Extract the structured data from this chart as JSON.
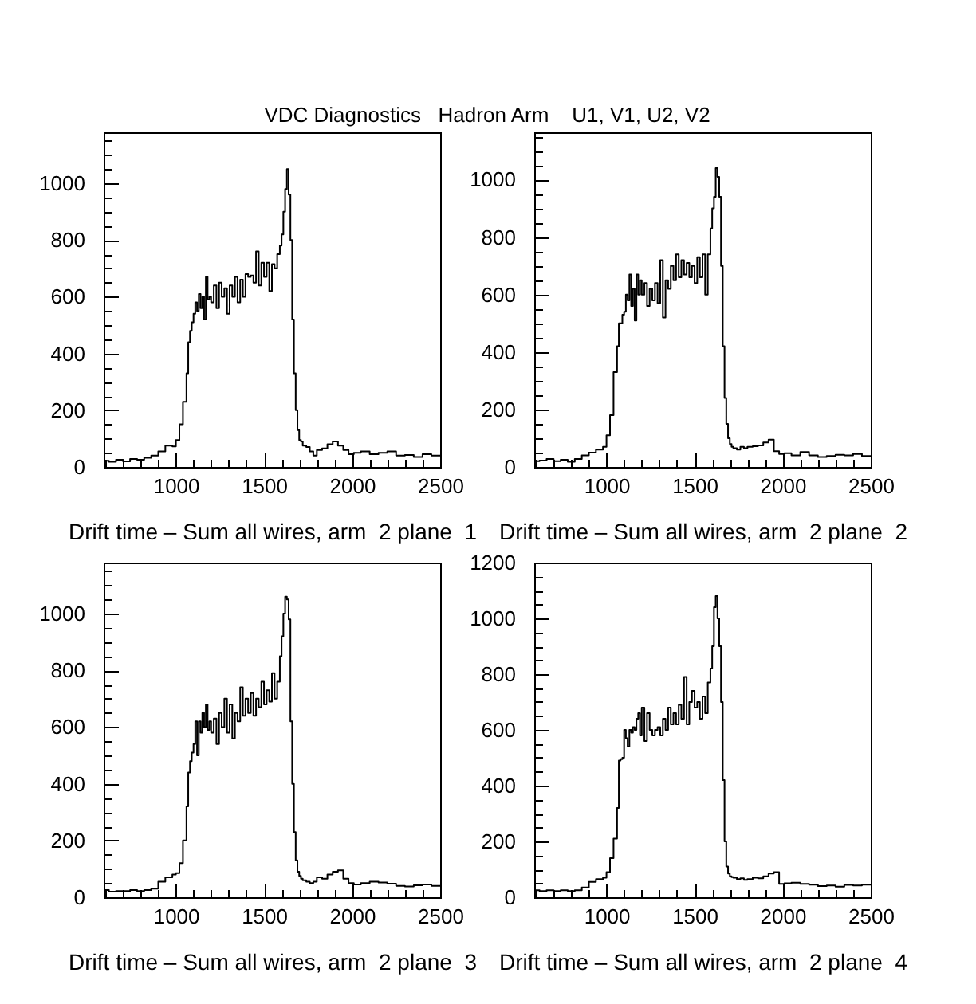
{
  "chart_data": [
    {
      "type": "histogram",
      "title": "VDC Diagnostics   Hadron Arm    U1, V1, U2, V2",
      "xlabel": "Drift time – Sum all wires, arm  2 plane  1",
      "color": "#000000",
      "bins": [
        590,
        620,
        660,
        700,
        740,
        780,
        820,
        860,
        900,
        940,
        980,
        1000,
        1020,
        1040,
        1060,
        1070,
        1080,
        1090,
        1100,
        1110,
        1120,
        1130,
        1140,
        1150,
        1160,
        1170,
        1180,
        1190,
        1200,
        1215,
        1230,
        1245,
        1260,
        1275,
        1290,
        1305,
        1320,
        1335,
        1350,
        1365,
        1380,
        1395,
        1410,
        1425,
        1440,
        1455,
        1470,
        1485,
        1500,
        1515,
        1530,
        1545,
        1560,
        1575,
        1590,
        1600,
        1610,
        1620,
        1630,
        1640,
        1650,
        1660,
        1670,
        1680,
        1690,
        1700,
        1710,
        1720,
        1740,
        1760,
        1780,
        1800,
        1830,
        1860,
        1890,
        1920,
        1950,
        1980,
        2010,
        2050,
        2100,
        2150,
        2200,
        2250,
        2300,
        2350,
        2400,
        2450,
        2500
      ],
      "values": [
        22,
        18,
        25,
        20,
        28,
        25,
        32,
        40,
        55,
        75,
        72,
        95,
        150,
        230,
        330,
        440,
        480,
        510,
        540,
        580,
        550,
        610,
        560,
        600,
        520,
        670,
        590,
        600,
        580,
        640,
        560,
        650,
        600,
        630,
        540,
        640,
        600,
        670,
        580,
        660,
        600,
        680,
        670,
        675,
        650,
        760,
        640,
        720,
        670,
        720,
        620,
        715,
        700,
        750,
        780,
        820,
        900,
        980,
        1050,
        960,
        800,
        520,
        330,
        200,
        130,
        95,
        90,
        75,
        70,
        55,
        40,
        60,
        65,
        80,
        90,
        75,
        60,
        45,
        50,
        55,
        45,
        50,
        55,
        40,
        42,
        35,
        45,
        40
      ],
      "xlim": [
        590,
        2500
      ],
      "xticks": [
        {
          "value": 600,
          "label": null
        },
        {
          "value": 700,
          "label": null
        },
        {
          "value": 800,
          "label": null
        },
        {
          "value": 900,
          "label": null
        },
        1000,
        {
          "value": 1100,
          "label": null
        },
        {
          "value": 1200,
          "label": null
        },
        {
          "value": 1300,
          "label": null
        },
        {
          "value": 1400,
          "label": null
        },
        1500,
        {
          "value": 1600,
          "label": null
        },
        {
          "value": 1700,
          "label": null
        },
        {
          "value": 1800,
          "label": null
        },
        {
          "value": 1900,
          "label": null
        },
        2000,
        {
          "value": 2100,
          "label": null
        },
        {
          "value": 2200,
          "label": null
        },
        {
          "value": 2300,
          "label": null
        },
        {
          "value": 2400,
          "label": null
        },
        2500
      ],
      "ylim": [
        0,
        1180
      ],
      "yticks": [
        0,
        {
          "value": 50,
          "label": null
        },
        {
          "value": 100,
          "label": null
        },
        {
          "value": 150,
          "label": null
        },
        200,
        {
          "value": 250,
          "label": null
        },
        {
          "value": 300,
          "label": null
        },
        {
          "value": 350,
          "label": null
        },
        400,
        {
          "value": 450,
          "label": null
        },
        {
          "value": 500,
          "label": null
        },
        {
          "value": 550,
          "label": null
        },
        600,
        {
          "value": 650,
          "label": null
        },
        {
          "value": 700,
          "label": null
        },
        {
          "value": 750,
          "label": null
        },
        800,
        {
          "value": 850,
          "label": null
        },
        {
          "value": 900,
          "label": null
        },
        {
          "value": 950,
          "label": null
        },
        1000,
        {
          "value": 1050,
          "label": null
        },
        {
          "value": 1100,
          "label": null
        },
        {
          "value": 1150,
          "label": null
        }
      ]
    },
    {
      "type": "histogram",
      "xlabel": "Drift time – Sum all wires, arm  2 plane  2",
      "color": "#000000",
      "bins": [
        590,
        620,
        660,
        700,
        740,
        780,
        820,
        860,
        900,
        940,
        980,
        1000,
        1020,
        1040,
        1060,
        1070,
        1080,
        1090,
        1100,
        1110,
        1120,
        1130,
        1140,
        1150,
        1160,
        1170,
        1180,
        1190,
        1200,
        1215,
        1230,
        1245,
        1260,
        1275,
        1290,
        1305,
        1320,
        1335,
        1350,
        1365,
        1380,
        1395,
        1410,
        1425,
        1440,
        1455,
        1470,
        1485,
        1500,
        1515,
        1530,
        1545,
        1560,
        1575,
        1590,
        1600,
        1610,
        1620,
        1630,
        1640,
        1650,
        1660,
        1670,
        1680,
        1690,
        1700,
        1710,
        1720,
        1740,
        1760,
        1780,
        1800,
        1830,
        1860,
        1890,
        1920,
        1950,
        1980,
        2010,
        2050,
        2100,
        2150,
        2200,
        2250,
        2300,
        2350,
        2400,
        2450,
        2500
      ],
      "values": [
        20,
        22,
        28,
        20,
        25,
        18,
        28,
        40,
        50,
        60,
        70,
        110,
        180,
        330,
        420,
        500,
        500,
        530,
        540,
        600,
        580,
        670,
        560,
        620,
        510,
        670,
        600,
        650,
        600,
        640,
        560,
        620,
        580,
        640,
        570,
        720,
        520,
        650,
        620,
        700,
        650,
        740,
        660,
        720,
        670,
        710,
        660,
        700,
        640,
        730,
        660,
        740,
        600,
        740,
        830,
        900,
        940,
        1040,
        1010,
        940,
        700,
        420,
        240,
        150,
        100,
        80,
        70,
        65,
        60,
        70,
        65,
        70,
        72,
        75,
        85,
        95,
        55,
        45,
        48,
        40,
        52,
        40,
        35,
        38,
        42,
        40,
        45,
        38
      ],
      "xlim": [
        590,
        2500
      ],
      "xticks": [
        {
          "value": 600,
          "label": null
        },
        {
          "value": 700,
          "label": null
        },
        {
          "value": 800,
          "label": null
        },
        {
          "value": 900,
          "label": null
        },
        1000,
        {
          "value": 1100,
          "label": null
        },
        {
          "value": 1200,
          "label": null
        },
        {
          "value": 1300,
          "label": null
        },
        {
          "value": 1400,
          "label": null
        },
        1500,
        {
          "value": 1600,
          "label": null
        },
        {
          "value": 1700,
          "label": null
        },
        {
          "value": 1800,
          "label": null
        },
        {
          "value": 1900,
          "label": null
        },
        2000,
        {
          "value": 2100,
          "label": null
        },
        {
          "value": 2200,
          "label": null
        },
        {
          "value": 2300,
          "label": null
        },
        {
          "value": 2400,
          "label": null
        },
        2500
      ],
      "ylim": [
        0,
        1165
      ],
      "yticks": [
        0,
        {
          "value": 50,
          "label": null
        },
        {
          "value": 100,
          "label": null
        },
        {
          "value": 150,
          "label": null
        },
        200,
        {
          "value": 250,
          "label": null
        },
        {
          "value": 300,
          "label": null
        },
        {
          "value": 350,
          "label": null
        },
        400,
        {
          "value": 450,
          "label": null
        },
        {
          "value": 500,
          "label": null
        },
        {
          "value": 550,
          "label": null
        },
        600,
        {
          "value": 650,
          "label": null
        },
        {
          "value": 700,
          "label": null
        },
        {
          "value": 750,
          "label": null
        },
        800,
        {
          "value": 850,
          "label": null
        },
        {
          "value": 900,
          "label": null
        },
        {
          "value": 950,
          "label": null
        },
        1000,
        {
          "value": 1050,
          "label": null
        },
        {
          "value": 1100,
          "label": null
        },
        {
          "value": 1150,
          "label": null
        }
      ]
    },
    {
      "type": "histogram",
      "xlabel": "Drift time – Sum all wires, arm  2 plane  3",
      "color": "#000000",
      "bins": [
        590,
        620,
        660,
        700,
        740,
        780,
        820,
        860,
        900,
        940,
        980,
        1000,
        1020,
        1040,
        1060,
        1070,
        1080,
        1090,
        1100,
        1110,
        1120,
        1130,
        1140,
        1150,
        1160,
        1170,
        1180,
        1190,
        1200,
        1215,
        1230,
        1245,
        1260,
        1275,
        1290,
        1305,
        1320,
        1335,
        1350,
        1365,
        1380,
        1395,
        1410,
        1425,
        1440,
        1455,
        1470,
        1485,
        1500,
        1515,
        1530,
        1545,
        1560,
        1575,
        1590,
        1600,
        1610,
        1620,
        1630,
        1640,
        1650,
        1660,
        1670,
        1680,
        1690,
        1700,
        1710,
        1720,
        1740,
        1760,
        1780,
        1800,
        1830,
        1860,
        1890,
        1920,
        1950,
        1980,
        2010,
        2050,
        2100,
        2150,
        2200,
        2250,
        2300,
        2350,
        2400,
        2450,
        2500
      ],
      "values": [
        25,
        20,
        22,
        22,
        25,
        22,
        25,
        30,
        55,
        70,
        80,
        85,
        120,
        200,
        320,
        440,
        480,
        510,
        540,
        620,
        500,
        620,
        580,
        650,
        600,
        680,
        590,
        620,
        580,
        630,
        540,
        650,
        600,
        700,
        580,
        680,
        560,
        650,
        620,
        740,
        640,
        700,
        650,
        720,
        640,
        700,
        670,
        760,
        680,
        730,
        690,
        790,
        700,
        760,
        850,
        920,
        1000,
        1060,
        1050,
        980,
        620,
        400,
        230,
        130,
        90,
        75,
        65,
        60,
        55,
        50,
        55,
        70,
        65,
        80,
        90,
        95,
        65,
        50,
        45,
        50,
        55,
        52,
        48,
        40,
        38,
        42,
        45,
        40
      ],
      "xlim": [
        590,
        2500
      ],
      "xticks": [
        {
          "value": 600,
          "label": null
        },
        {
          "value": 700,
          "label": null
        },
        {
          "value": 800,
          "label": null
        },
        {
          "value": 900,
          "label": null
        },
        1000,
        {
          "value": 1100,
          "label": null
        },
        {
          "value": 1200,
          "label": null
        },
        {
          "value": 1300,
          "label": null
        },
        {
          "value": 1400,
          "label": null
        },
        1500,
        {
          "value": 1600,
          "label": null
        },
        {
          "value": 1700,
          "label": null
        },
        {
          "value": 1800,
          "label": null
        },
        {
          "value": 1900,
          "label": null
        },
        2000,
        {
          "value": 2100,
          "label": null
        },
        {
          "value": 2200,
          "label": null
        },
        {
          "value": 2300,
          "label": null
        },
        {
          "value": 2400,
          "label": null
        },
        2500
      ],
      "ylim": [
        0,
        1180
      ],
      "yticks": [
        0,
        {
          "value": 50,
          "label": null
        },
        {
          "value": 100,
          "label": null
        },
        {
          "value": 150,
          "label": null
        },
        200,
        {
          "value": 250,
          "label": null
        },
        {
          "value": 300,
          "label": null
        },
        {
          "value": 350,
          "label": null
        },
        400,
        {
          "value": 450,
          "label": null
        },
        {
          "value": 500,
          "label": null
        },
        {
          "value": 550,
          "label": null
        },
        600,
        {
          "value": 650,
          "label": null
        },
        {
          "value": 700,
          "label": null
        },
        {
          "value": 750,
          "label": null
        },
        800,
        {
          "value": 850,
          "label": null
        },
        {
          "value": 900,
          "label": null
        },
        {
          "value": 950,
          "label": null
        },
        1000,
        {
          "value": 1050,
          "label": null
        },
        {
          "value": 1100,
          "label": null
        },
        {
          "value": 1150,
          "label": null
        }
      ]
    },
    {
      "type": "histogram",
      "xlabel": "Drift time – Sum all wires, arm  2 plane  4",
      "color": "#000000",
      "bins": [
        590,
        620,
        660,
        700,
        740,
        780,
        820,
        860,
        900,
        940,
        980,
        1000,
        1020,
        1040,
        1060,
        1070,
        1080,
        1090,
        1100,
        1110,
        1120,
        1130,
        1140,
        1150,
        1160,
        1170,
        1180,
        1190,
        1200,
        1215,
        1230,
        1245,
        1260,
        1275,
        1290,
        1305,
        1320,
        1335,
        1350,
        1365,
        1380,
        1395,
        1410,
        1425,
        1440,
        1455,
        1470,
        1485,
        1500,
        1515,
        1530,
        1545,
        1560,
        1575,
        1590,
        1600,
        1610,
        1620,
        1630,
        1640,
        1650,
        1660,
        1670,
        1680,
        1690,
        1700,
        1710,
        1720,
        1740,
        1760,
        1780,
        1800,
        1830,
        1860,
        1890,
        1920,
        1950,
        1980,
        2010,
        2050,
        2100,
        2150,
        2200,
        2250,
        2300,
        2350,
        2400,
        2450,
        2500
      ],
      "values": [
        25,
        22,
        25,
        22,
        25,
        22,
        25,
        35,
        55,
        65,
        70,
        90,
        140,
        210,
        320,
        490,
        495,
        500,
        600,
        570,
        540,
        600,
        590,
        610,
        600,
        640,
        660,
        580,
        680,
        560,
        660,
        600,
        580,
        600,
        610,
        580,
        640,
        600,
        680,
        620,
        660,
        620,
        690,
        640,
        790,
        620,
        700,
        740,
        680,
        700,
        640,
        720,
        660,
        770,
        820,
        900,
        1040,
        1080,
        1000,
        900,
        700,
        420,
        200,
        110,
        85,
        75,
        72,
        70,
        65,
        68,
        62,
        65,
        70,
        68,
        75,
        85,
        90,
        48,
        50,
        52,
        48,
        45,
        40,
        42,
        38,
        44,
        42,
        45
      ],
      "xlim": [
        590,
        2500
      ],
      "xticks": [
        {
          "value": 600,
          "label": null
        },
        {
          "value": 700,
          "label": null
        },
        {
          "value": 800,
          "label": null
        },
        {
          "value": 900,
          "label": null
        },
        1000,
        {
          "value": 1100,
          "label": null
        },
        {
          "value": 1200,
          "label": null
        },
        {
          "value": 1300,
          "label": null
        },
        {
          "value": 1400,
          "label": null
        },
        1500,
        {
          "value": 1600,
          "label": null
        },
        {
          "value": 1700,
          "label": null
        },
        {
          "value": 1800,
          "label": null
        },
        {
          "value": 1900,
          "label": null
        },
        2000,
        {
          "value": 2100,
          "label": null
        },
        {
          "value": 2200,
          "label": null
        },
        {
          "value": 2300,
          "label": null
        },
        {
          "value": 2400,
          "label": null
        },
        2500
      ],
      "ylim": [
        0,
        1200
      ],
      "yticks": [
        0,
        {
          "value": 50,
          "label": null
        },
        {
          "value": 100,
          "label": null
        },
        {
          "value": 150,
          "label": null
        },
        200,
        {
          "value": 250,
          "label": null
        },
        {
          "value": 300,
          "label": null
        },
        {
          "value": 350,
          "label": null
        },
        400,
        {
          "value": 450,
          "label": null
        },
        {
          "value": 500,
          "label": null
        },
        {
          "value": 550,
          "label": null
        },
        600,
        {
          "value": 650,
          "label": null
        },
        {
          "value": 700,
          "label": null
        },
        {
          "value": 750,
          "label": null
        },
        800,
        {
          "value": 850,
          "label": null
        },
        {
          "value": 900,
          "label": null
        },
        {
          "value": 950,
          "label": null
        },
        1000,
        {
          "value": 1050,
          "label": null
        },
        {
          "value": 1100,
          "label": null
        },
        {
          "value": 1150,
          "label": null
        },
        1200
      ]
    }
  ]
}
